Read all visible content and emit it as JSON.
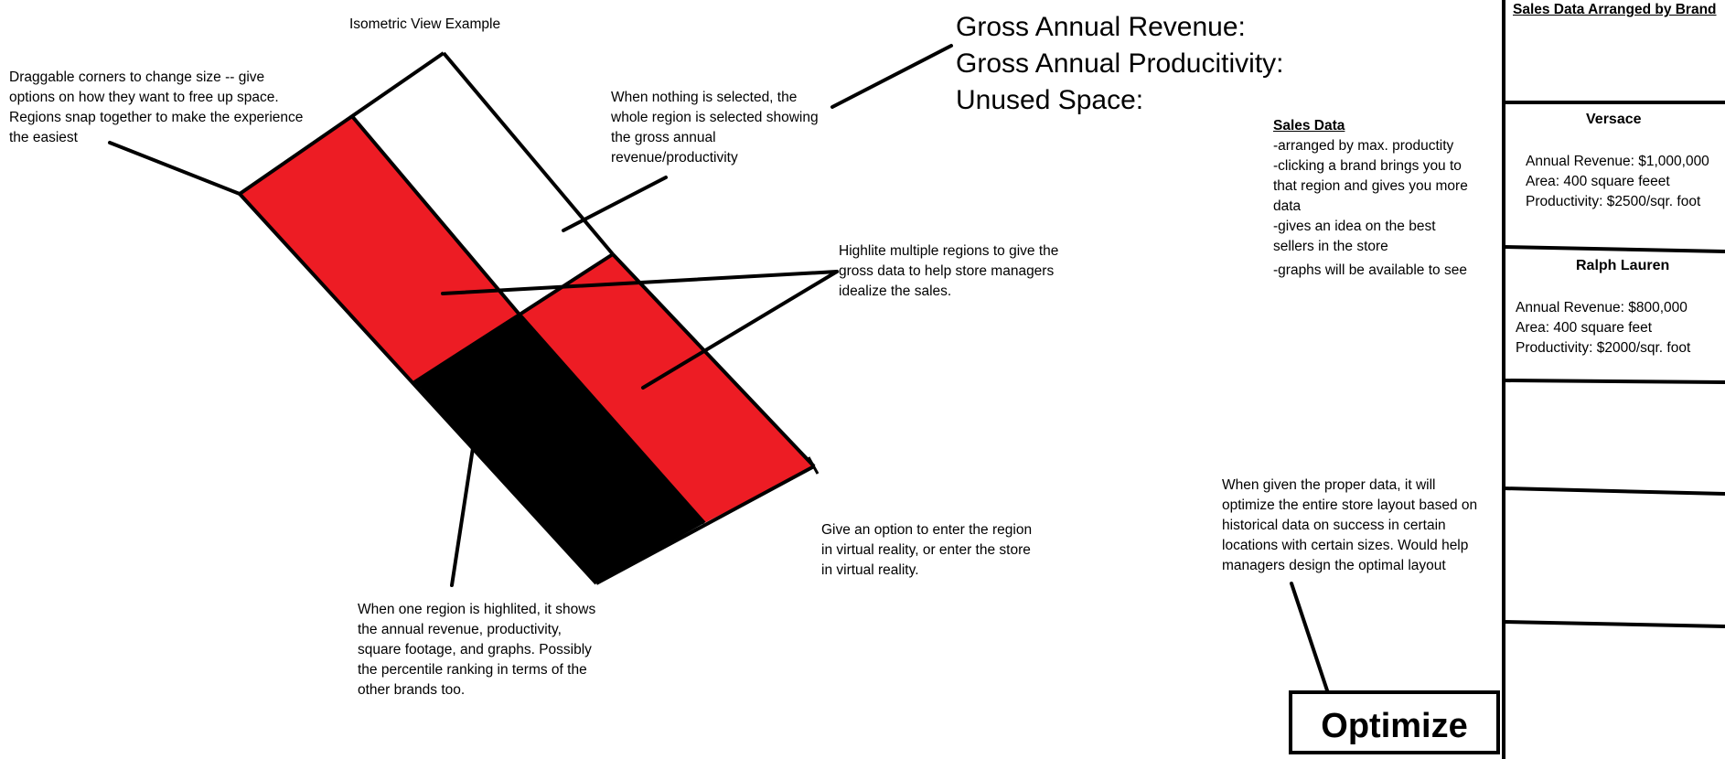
{
  "iso_title": "Isometric View Example",
  "gross": {
    "revenue_label": "Gross Annual Revenue:",
    "productivity_label": "Gross Annual Producitivity:",
    "unused_label": "Unused Space:"
  },
  "notes": {
    "draggable": [
      "Draggable corners to change size -- give",
      "options on how they want to free up space.",
      "Regions snap together to make the experience",
      "the easiest"
    ],
    "nothing_selected": [
      "When nothing is selected, the",
      "whole region is selected showing",
      "the gross annual",
      "revenue/productivity"
    ],
    "highlite_multiple": [
      "Highlite multiple regions to give the",
      "gross data to help store managers",
      "idealize the sales."
    ],
    "one_region": [
      "When one region is highlited, it shows",
      "the annual revenue, productivity,",
      "square footage, and graphs. Possibly",
      "the percentile ranking in terms of the",
      "other brands too."
    ],
    "vr": [
      "Give an option to enter the region",
      "in virtual reality, or enter the store",
      "in virtual reality."
    ],
    "optimize_note": [
      "When given the proper data, it will",
      "optimize the entire store layout based on",
      "historical data on success in certain",
      "locations with certain sizes. Would help",
      "managers design the optimal layout"
    ]
  },
  "sales_data": {
    "heading": "Sales Data",
    "lines": [
      "-arranged by max. productity",
      "-clicking a brand brings you to",
      "that region and gives you more",
      "data",
      "-gives an idea on the best",
      "sellers in the store",
      "-graphs will be available to see"
    ]
  },
  "panel": {
    "title": "Sales Data Arranged by Brand",
    "brands": [
      {
        "name": "Versace",
        "revenue": "Annual Revenue: $1,000,000",
        "area": "Area: 400 square feeet",
        "productivity": "Productivity: $2500/sqr. foot"
      },
      {
        "name": "Ralph Lauren",
        "revenue": "Annual Revenue: $800,000",
        "area": "Area: 400 square feet",
        "productivity": "Productivity: $2000/sqr. foot"
      }
    ]
  },
  "optimize_label": "Optimize",
  "colors": {
    "region_red": "#ed1c24",
    "region_black": "#000000",
    "region_white": "#ffffff",
    "ink": "#000000"
  }
}
